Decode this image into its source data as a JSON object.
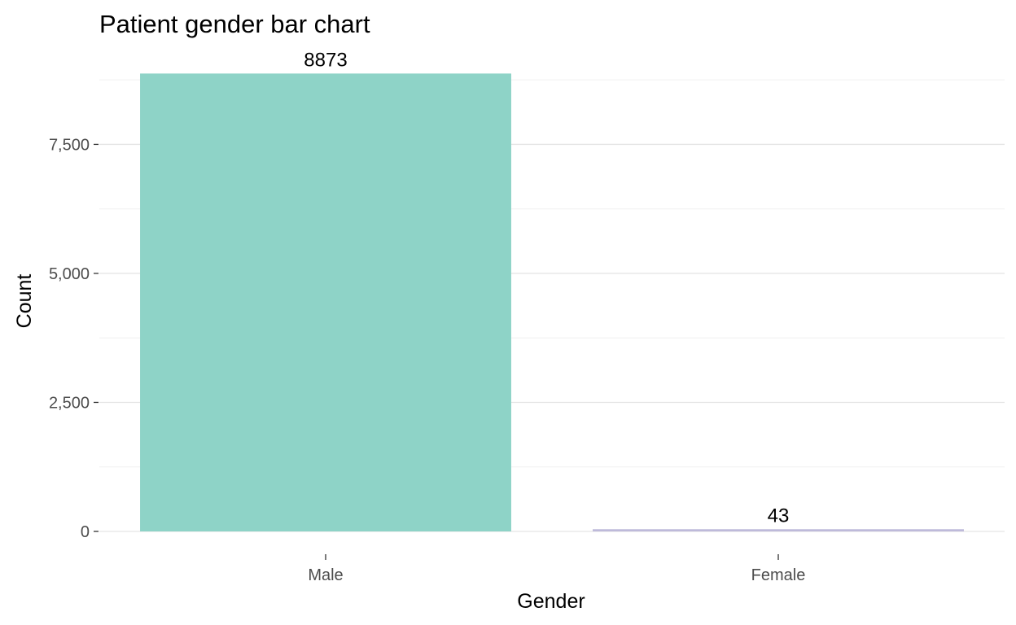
{
  "chart_data": {
    "type": "bar",
    "title": "Patient gender bar chart",
    "xlabel": "Gender",
    "ylabel": "Count",
    "categories": [
      "Male",
      "Female"
    ],
    "values": [
      8873,
      43
    ],
    "data_labels": [
      "8873",
      "43"
    ],
    "colors": [
      "#8ed3c7",
      "#bebada"
    ],
    "ylim": [
      0,
      9000
    ],
    "yticks": [
      0,
      2500,
      5000,
      7500
    ],
    "ytick_labels": [
      "0",
      "2,500",
      "5,000",
      "7,500"
    ],
    "grid": true,
    "legend": "none"
  }
}
